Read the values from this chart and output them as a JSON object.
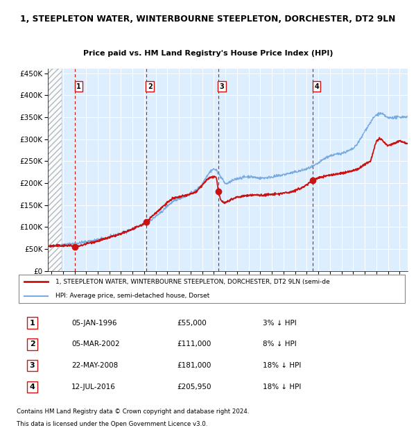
{
  "title1": "1, STEEPLETON WATER, WINTERBOURNE STEEPLETON, DORCHESTER, DT2 9LN",
  "title2": "Price paid vs. HM Land Registry's House Price Index (HPI)",
  "sales": [
    {
      "num": 1,
      "date_year": 1996.03,
      "price": 55000
    },
    {
      "num": 2,
      "date_year": 2002.17,
      "price": 111000
    },
    {
      "num": 3,
      "date_year": 2008.38,
      "price": 181000
    },
    {
      "num": 4,
      "date_year": 2016.53,
      "price": 205950
    }
  ],
  "sale_labels": [
    {
      "num": "1",
      "date": "05-JAN-1996",
      "price": "£55,000",
      "hpi_diff": "3% ↓ HPI"
    },
    {
      "num": "2",
      "date": "05-MAR-2002",
      "price": "£111,000",
      "hpi_diff": "8% ↓ HPI"
    },
    {
      "num": "3",
      "date": "22-MAY-2008",
      "price": "£181,000",
      "hpi_diff": "18% ↓ HPI"
    },
    {
      "num": "4",
      "date": "12-JUL-2016",
      "price": "£205,950",
      "hpi_diff": "18% ↓ HPI"
    }
  ],
  "hpi_line_color": "#7aabe0",
  "property_line_color": "#cc1111",
  "sale_dot_color": "#cc1111",
  "sale_vline_color": "#cc1111",
  "plot_bg_color": "#ddeeff",
  "legend_line1": "1, STEEPLETON WATER, WINTERBOURNE STEEPLETON, DORCHESTER, DT2 9LN (semi-de",
  "legend_line2": "HPI: Average price, semi-detached house, Dorset",
  "footer1": "Contains HM Land Registry data © Crown copyright and database right 2024.",
  "footer2": "This data is licensed under the Open Government Licence v3.0.",
  "ylim": [
    0,
    460000
  ],
  "yticks": [
    0,
    50000,
    100000,
    150000,
    200000,
    250000,
    300000,
    350000,
    400000,
    450000
  ],
  "xlim_start": 1993.7,
  "xlim_end": 2024.7,
  "hatch_end": 1994.92
}
